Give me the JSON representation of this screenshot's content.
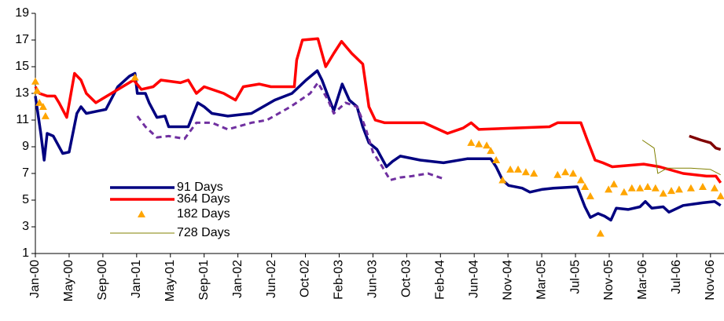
{
  "chart_data": {
    "type": "line",
    "xlim": [
      0,
      20.4
    ],
    "xticks": [
      {
        "value": 0,
        "label": "Jan-00"
      },
      {
        "value": 1,
        "label": "May-00"
      },
      {
        "value": 2,
        "label": "Sep-00"
      },
      {
        "value": 3,
        "label": "Jan-01"
      },
      {
        "value": 4,
        "label": "May-01"
      },
      {
        "value": 5,
        "label": "Sep-01"
      },
      {
        "value": 6,
        "label": "Jan-02"
      },
      {
        "value": 7,
        "label": "Jun-02"
      },
      {
        "value": 8,
        "label": "Oct-02"
      },
      {
        "value": 9,
        "label": "Feb-03"
      },
      {
        "value": 10,
        "label": "Jun-03"
      },
      {
        "value": 11,
        "label": "Oct-03"
      },
      {
        "value": 12,
        "label": "Feb-04"
      },
      {
        "value": 13,
        "label": "Jun-04"
      },
      {
        "value": 14,
        "label": "Nov-04"
      },
      {
        "value": 15,
        "label": "Mar-05"
      },
      {
        "value": 16,
        "label": "Jul-05"
      },
      {
        "value": 17,
        "label": "Nov-05"
      },
      {
        "value": 18,
        "label": "Mar-06"
      },
      {
        "value": 19,
        "label": "Jul-06"
      },
      {
        "value": 20,
        "label": "Nov-06"
      }
    ],
    "ylim": [
      1,
      19
    ],
    "yticks": [
      1,
      3,
      5,
      7,
      9,
      11,
      13,
      15,
      17,
      19
    ],
    "grid": false,
    "legend": "lower left",
    "series": [
      {
        "name": "91 Days",
        "color": "#000080",
        "width": 3.5,
        "marker": "none",
        "x": [
          0,
          0.16,
          0.26,
          0.35,
          0.53,
          0.81,
          1.0,
          1.23,
          1.35,
          1.51,
          2.09,
          2.44,
          2.79,
          2.95,
          3.02,
          3.26,
          3.37,
          3.6,
          3.84,
          3.95,
          4.53,
          4.81,
          5.0,
          5.23,
          5.7,
          6.4,
          7.09,
          7.6,
          8.02,
          8.35,
          8.49,
          8.67,
          8.84,
          9.09,
          9.3,
          9.53,
          9.7,
          9.88,
          10.12,
          10.4,
          10.58,
          10.81,
          11.4,
          12.09,
          12.79,
          13.49,
          13.65,
          13.84,
          14.02,
          14.42,
          14.65,
          15.0,
          15.35,
          16.05,
          16.28,
          16.44,
          16.67,
          16.86,
          17.05,
          17.21,
          17.56,
          17.91,
          18.07,
          18.26,
          18.6,
          18.77,
          19.19,
          19.77,
          20.12,
          20.3
        ],
        "values": [
          12.8,
          10,
          8,
          10,
          9.8,
          8.5,
          8.6,
          11.5,
          12,
          11.5,
          11.8,
          13.5,
          14.3,
          14.5,
          13,
          13,
          12.3,
          11.2,
          11.3,
          10.5,
          10.5,
          12.3,
          12,
          11.5,
          11.3,
          11.5,
          12.5,
          13,
          14,
          14.7,
          14,
          12.8,
          11.7,
          13.7,
          12.5,
          12,
          10.5,
          9.3,
          8.8,
          7.5,
          7.9,
          8.3,
          8,
          7.8,
          8.1,
          8.1,
          7.5,
          6.5,
          6.1,
          5.9,
          5.6,
          5.8,
          5.9,
          6,
          4.5,
          3.7,
          4,
          3.8,
          3.5,
          4.4,
          4.3,
          4.5,
          4.9,
          4.4,
          4.5,
          4.1,
          4.6,
          4.8,
          4.9,
          4.6
        ]
      },
      {
        "name": "364 Days",
        "color": "#ff0000",
        "width": 3.5,
        "marker": "none",
        "x": [
          0,
          0.12,
          0.35,
          0.58,
          0.7,
          0.93,
          1.16,
          1.35,
          1.51,
          1.79,
          2.91,
          3.14,
          3.49,
          3.72,
          4.3,
          4.53,
          4.77,
          5.0,
          5.23,
          5.58,
          5.93,
          6.16,
          6.63,
          6.98,
          7.67,
          7.74,
          7.91,
          8.37,
          8.6,
          8.84,
          9.07,
          9.37,
          9.7,
          9.88,
          10.07,
          10.35,
          11.51,
          12.21,
          12.67,
          12.91,
          13.14,
          15.23,
          15.47,
          16.16,
          16.35,
          16.58,
          16.81,
          17.09,
          18.02,
          18.49,
          19.19,
          19.88,
          20.16,
          20.3
        ],
        "values": [
          13.5,
          13,
          12.8,
          12.8,
          12.3,
          11.2,
          14.5,
          14,
          13,
          12.3,
          14,
          13.3,
          13.5,
          14,
          13.8,
          14,
          13,
          13.5,
          13.3,
          13,
          12.5,
          13.5,
          13.7,
          13.5,
          13.5,
          15.5,
          17,
          17.1,
          15,
          16,
          16.9,
          16,
          15.2,
          12,
          11,
          10.8,
          10.8,
          10,
          10.4,
          10.8,
          10.3,
          10.5,
          10.8,
          10.8,
          9.5,
          8,
          7.8,
          7.5,
          7.7,
          7.5,
          7,
          6.8,
          6.8,
          6.3
        ]
      },
      {
        "name": "182 Days",
        "color": "#ffa500",
        "width": 0,
        "marker": "triangle",
        "x": [
          0,
          0.05,
          0.12,
          0.23,
          0.3,
          2.95,
          12.91,
          13.14,
          13.37,
          13.49,
          13.65,
          13.84,
          14.07,
          14.3,
          14.53,
          14.77,
          15.47,
          15.7,
          15.93,
          16.16,
          16.28,
          16.44,
          16.74,
          16.98,
          17.14,
          17.44,
          17.67,
          17.91,
          18.14,
          18.37,
          18.6,
          18.84,
          19.07,
          19.42,
          19.77,
          20.12,
          20.3
        ],
        "values": [
          13.9,
          13.2,
          12.3,
          12,
          11.3,
          14.2,
          9.3,
          9.2,
          9.1,
          8.7,
          8,
          6.5,
          7.3,
          7.3,
          7.1,
          7,
          6.9,
          7.1,
          7,
          6.5,
          6,
          5.3,
          2.5,
          5.8,
          6.2,
          5.6,
          5.9,
          5.9,
          6,
          5.9,
          5.5,
          5.7,
          5.8,
          5.9,
          6,
          5.9,
          5.3
        ]
      },
      {
        "name": "728 Days",
        "color": "#808000",
        "width": 1,
        "marker": "none",
        "x": [
          17.98,
          18.33,
          18.44,
          18.72,
          19.42,
          20,
          20.3
        ],
        "values": [
          9.5,
          8.9,
          7,
          7.4,
          7.4,
          7.3,
          6.9
        ]
      },
      {
        "color": "#7030a0",
        "width": 3,
        "marker": "none",
        "dash": true,
        "x": [
          3.02,
          3.26,
          3.6,
          3.95,
          4.42,
          4.77,
          5.23,
          5.7,
          6.4,
          6.86,
          7.56,
          8.14,
          8.37,
          8.67,
          8.84,
          9.19,
          9.53,
          9.77,
          10.0,
          10.23,
          10.51,
          10.81,
          11.16,
          11.63,
          12.09
        ],
        "values": [
          11.3,
          10.5,
          9.7,
          9.8,
          9.6,
          10.8,
          10.8,
          10.3,
          10.8,
          11,
          12,
          13,
          13.8,
          12.5,
          11.5,
          12.3,
          12,
          10.5,
          8.6,
          7.7,
          6.5,
          6.7,
          6.8,
          7,
          6.6
        ]
      },
      {
        "color": "#800000",
        "width": 3.5,
        "marker": "none",
        "x": [
          19.37,
          19.72,
          20,
          20.16,
          20.3
        ],
        "values": [
          9.8,
          9.5,
          9.3,
          8.9,
          8.8
        ]
      }
    ]
  }
}
